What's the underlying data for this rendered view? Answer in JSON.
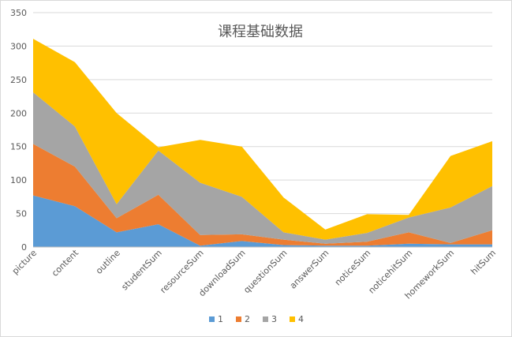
{
  "chart_data": {
    "type": "area",
    "stacked": true,
    "title": "课程基础数据",
    "xlabel": "",
    "ylabel": "",
    "categories": [
      "picture",
      "content",
      "outline",
      "studentSum",
      "resourceSum",
      "downloadSum",
      "questionSum",
      "answerSum",
      "noticeSum",
      "noticehitSum",
      "homeworkSum",
      "hitSum"
    ],
    "ylim": [
      0,
      350
    ],
    "yticks": [
      "0",
      "50",
      "100",
      "150",
      "200",
      "250",
      "300",
      "350"
    ],
    "grid": true,
    "legend_position": "bottom",
    "series": [
      {
        "name": "1",
        "color": "#5b9bd5",
        "values": [
          77,
          61,
          22,
          34,
          2,
          9,
          3,
          2,
          2,
          5,
          4,
          4
        ]
      },
      {
        "name": "2",
        "color": "#ed7d31",
        "values": [
          77,
          59,
          21,
          44,
          16,
          10,
          8,
          3,
          6,
          17,
          2,
          21
        ]
      },
      {
        "name": "3",
        "color": "#a5a5a5",
        "values": [
          77,
          60,
          21,
          66,
          78,
          56,
          11,
          6,
          13,
          22,
          53,
          66
        ]
      },
      {
        "name": "4",
        "color": "#ffc000",
        "values": [
          80,
          96,
          136,
          5,
          64,
          75,
          52,
          15,
          28,
          4,
          77,
          67
        ]
      }
    ]
  }
}
